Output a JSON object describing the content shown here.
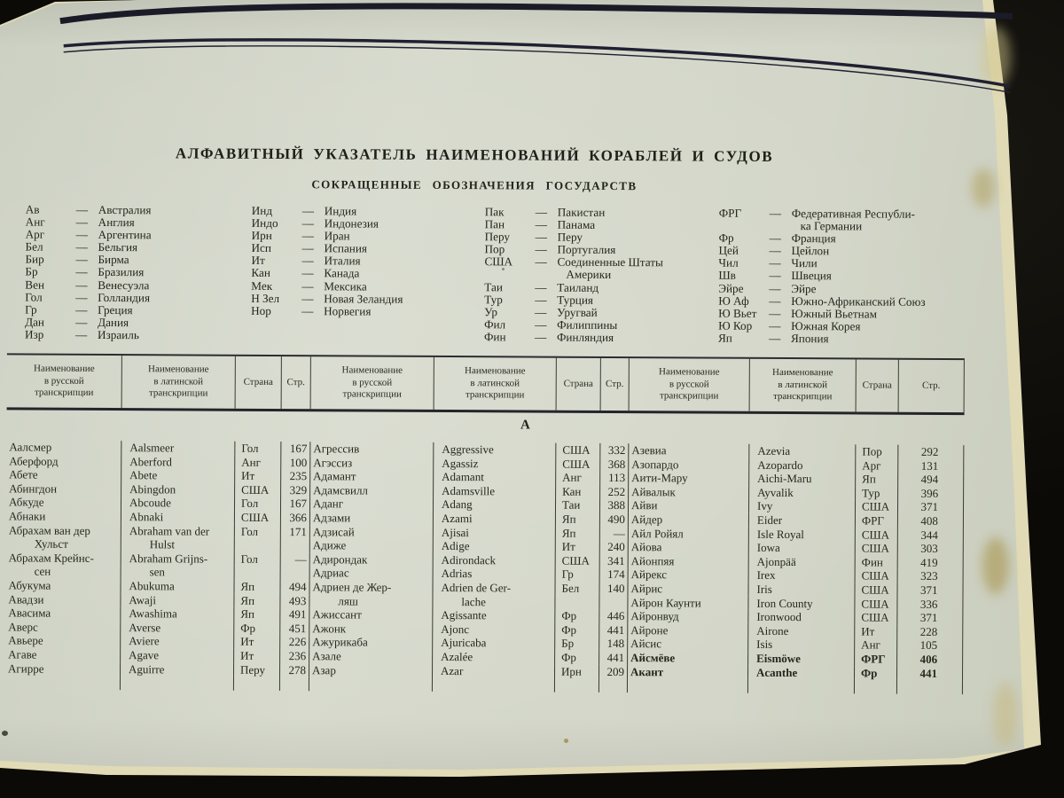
{
  "document": {
    "title": "АЛФАВИТНЫЙ УКАЗАТЕЛЬ НАИМЕНОВАНИЙ КОРАБЛЕЙ И СУДОВ",
    "subtitle": "СОКРАЩЕННЫЕ ОБОЗНАЧЕНИЯ ГОСУДАРСТВ",
    "section_letter": "А"
  },
  "colors": {
    "page_bg": "#d3d6c8",
    "ink": "#28271f",
    "rule_ink": "#202032",
    "photo_black": "#0b0a07",
    "page_edge_cream": "#e0dab6"
  },
  "abbreviations": {
    "columns": [
      {
        "items": [
          {
            "abbr": "Ав",
            "name": "Австралия"
          },
          {
            "abbr": "Анг",
            "name": "Англия"
          },
          {
            "abbr": "Арг",
            "name": "Аргентина"
          },
          {
            "abbr": "Бел",
            "name": "Бельгия"
          },
          {
            "abbr": "Бир",
            "name": "Бирма"
          },
          {
            "abbr": "Бр",
            "name": "Бразилия"
          },
          {
            "abbr": "Вен",
            "name": "Венесуэла"
          },
          {
            "abbr": "Гол",
            "name": "Голландия"
          },
          {
            "abbr": "Гр",
            "name": "Греция"
          },
          {
            "abbr": "Дан",
            "name": "Дания"
          },
          {
            "abbr": "Изр",
            "name": "Израиль"
          }
        ]
      },
      {
        "items": [
          {
            "abbr": "Инд",
            "name": "Индия"
          },
          {
            "abbr": "Индо",
            "name": "Индонезия"
          },
          {
            "abbr": "Ирн",
            "name": "Иран"
          },
          {
            "abbr": "Исп",
            "name": "Испания"
          },
          {
            "abbr": "Ит",
            "name": "Италия"
          },
          {
            "abbr": "Кан",
            "name": "Канада"
          },
          {
            "abbr": "Мек",
            "name": "Мексика"
          },
          {
            "abbr": "Н Зел",
            "name": "Новая Зеландия"
          },
          {
            "abbr": "Нор",
            "name": "Норвегия"
          }
        ]
      },
      {
        "items": [
          {
            "abbr": "Пак",
            "name": "Пакистан"
          },
          {
            "abbr": "Пан",
            "name": "Панама"
          },
          {
            "abbr": "Перу",
            "name": "Перу"
          },
          {
            "abbr": "Пор",
            "name": "Португалия"
          },
          {
            "abbr": "США",
            "name": "Соединенные Штаты",
            "name2": "Америки"
          },
          {
            "abbr": "Таи",
            "name": "Таиланд"
          },
          {
            "abbr": "Тур",
            "name": "Турция"
          },
          {
            "abbr": "Ур",
            "name": "Уругвай"
          },
          {
            "abbr": "Фил",
            "name": "Филиппины"
          },
          {
            "abbr": "Фин",
            "name": "Финляндия"
          }
        ]
      },
      {
        "items": [
          {
            "abbr": "ФРГ",
            "name": "Федеративная Республи-",
            "name2": "ка Германии"
          },
          {
            "abbr": "Фр",
            "name": "Франция"
          },
          {
            "abbr": "Цей",
            "name": "Цейлон"
          },
          {
            "abbr": "Чил",
            "name": "Чили"
          },
          {
            "abbr": "Шв",
            "name": "Швеция"
          },
          {
            "abbr": "Эйре",
            "name": "Эйре"
          },
          {
            "abbr": "Ю Аф",
            "name": "Южно-Африканский Союз"
          },
          {
            "abbr": "Ю Вьет",
            "name": "Южный Вьетнам"
          },
          {
            "abbr": "Ю Кор",
            "name": "Южная Корея"
          },
          {
            "abbr": "Яп",
            "name": "Япония"
          }
        ]
      }
    ]
  },
  "table": {
    "header": {
      "ru_lines": [
        "Наименование",
        "в русской",
        "транскрипции"
      ],
      "lat_lines": [
        "Наименование",
        "в латинской",
        "транскрипции"
      ],
      "country": "Страна",
      "page": "Стр."
    },
    "groups": [
      {
        "rows": [
          {
            "ru": "Аалсмер",
            "lat": "Aalsmeer",
            "country": "Гол",
            "page": "167"
          },
          {
            "ru": "Аберфорд",
            "lat": "Aberford",
            "country": "Анг",
            "page": "100"
          },
          {
            "ru": "Абете",
            "lat": "Abete",
            "country": "Ит",
            "page": "235"
          },
          {
            "ru": "Абингдон",
            "lat": "Abingdon",
            "country": "США",
            "page": "329"
          },
          {
            "ru": "Абкуде",
            "lat": "Abcoude",
            "country": "Гол",
            "page": "167"
          },
          {
            "ru": "Абнаки",
            "lat": "Abnaki",
            "country": "США",
            "page": "366"
          },
          {
            "ru": "Абрахам ван дер",
            "lat": "Abraham van der",
            "country": "Гол",
            "page": "171",
            "ru2": "Хульст",
            "lat2": "Hulst"
          },
          {
            "ru": "Абрахам Крейнс-",
            "lat": "Abraham Grijns-",
            "country": "Гол",
            "page": "—",
            "ru2": "сен",
            "lat2": "sen"
          },
          {
            "ru": "Абукума",
            "lat": "Abukuma",
            "country": "Яп",
            "page": "494"
          },
          {
            "ru": "Авадзи",
            "lat": "Awaji",
            "country": "Яп",
            "page": "493"
          },
          {
            "ru": "Авасима",
            "lat": "Awashima",
            "country": "Яп",
            "page": "491"
          },
          {
            "ru": "Аверс",
            "lat": "Averse",
            "country": "Фр",
            "page": "451"
          },
          {
            "ru": "Авьере",
            "lat": "Aviere",
            "country": "Ит",
            "page": "226"
          },
          {
            "ru": "Агаве",
            "lat": "Agave",
            "country": "Ит",
            "page": "236"
          },
          {
            "ru": "Агирре",
            "lat": "Aguirre",
            "country": "Перу",
            "page": "278"
          }
        ]
      },
      {
        "rows": [
          {
            "ru": "Агрессив",
            "lat": "Aggressive",
            "country": "США",
            "page": "332"
          },
          {
            "ru": "Агэссиз",
            "lat": "Agassiz",
            "country": "США",
            "page": "368"
          },
          {
            "ru": "Адамант",
            "lat": "Adamant",
            "country": "Анг",
            "page": "113"
          },
          {
            "ru": "Адамсвилл",
            "lat": "Adamsville",
            "country": "Кан",
            "page": "252"
          },
          {
            "ru": "Аданг",
            "lat": "Adang",
            "country": "Таи",
            "page": "388"
          },
          {
            "ru": "Адзами",
            "lat": "Azami",
            "country": "Яп",
            "page": "490"
          },
          {
            "ru": "Адзисай",
            "lat": "Ajisai",
            "country": "Яп",
            "page": "—"
          },
          {
            "ru": "Адиже",
            "lat": "Adige",
            "country": "Ит",
            "page": "240"
          },
          {
            "ru": "Адирондак",
            "lat": "Adirondack",
            "country": "США",
            "page": "341"
          },
          {
            "ru": "Адриас",
            "lat": "Adrias",
            "country": "Гр",
            "page": "174"
          },
          {
            "ru": "Адриен де Жер-",
            "lat": "Adrien de Ger-",
            "country": "Бел",
            "page": "140",
            "ru2": "ляш",
            "lat2": "lache"
          },
          {
            "ru": "Ажиссант",
            "lat": "Agissante",
            "country": "Фр",
            "page": "446"
          },
          {
            "ru": "Ажонк",
            "lat": "Ajonc",
            "country": "Фр",
            "page": "441"
          },
          {
            "ru": "Ажурикаба",
            "lat": "Ajuricaba",
            "country": "Бр",
            "page": "148"
          },
          {
            "ru": "Азале",
            "lat": "Azalée",
            "country": "Фр",
            "page": "441"
          },
          {
            "ru": "Азар",
            "lat": "Azar",
            "country": "Ирн",
            "page": "209"
          }
        ]
      },
      {
        "rows": [
          {
            "ru": "Азевиа",
            "lat": "Azevia",
            "country": "Пор",
            "page": "292"
          },
          {
            "ru": "Азопардо",
            "lat": "Azopardo",
            "country": "Арг",
            "page": "131"
          },
          {
            "ru": "Аити-Мару",
            "lat": "Aichi-Maru",
            "country": "Яп",
            "page": "494"
          },
          {
            "ru": "Айвалык",
            "lat": "Ayvalik",
            "country": "Тур",
            "page": "396"
          },
          {
            "ru": "Айви",
            "lat": "Ivy",
            "country": "США",
            "page": "371"
          },
          {
            "ru": "Айдер",
            "lat": "Eider",
            "country": "ФРГ",
            "page": "408"
          },
          {
            "ru": "Айл Ройял",
            "lat": "Isle Royal",
            "country": "США",
            "page": "344"
          },
          {
            "ru": "Айова",
            "lat": "Iowa",
            "country": "США",
            "page": "303"
          },
          {
            "ru": "Айонпяя",
            "lat": "Ajonpää",
            "country": "Фин",
            "page": "419"
          },
          {
            "ru": "Айрекс",
            "lat": "Irex",
            "country": "США",
            "page": "323"
          },
          {
            "ru": "Айрис",
            "lat": "Iris",
            "country": "США",
            "page": "371"
          },
          {
            "ru": "Айрон Каунти",
            "lat": "Iron County",
            "country": "США",
            "page": "336"
          },
          {
            "ru": "Айронвуд",
            "lat": "Ironwood",
            "country": "США",
            "page": "371"
          },
          {
            "ru": "Айроне",
            "lat": "Airone",
            "country": "Ит",
            "page": "228"
          },
          {
            "ru": "Айсис",
            "lat": "Isis",
            "country": "Анг",
            "page": "105"
          },
          {
            "ru": "Айсмёве",
            "lat": "Eismöwe",
            "country": "ФРГ",
            "page": "406",
            "bold": true
          },
          {
            "ru": "Акант",
            "lat": "Acanthe",
            "country": "Фр",
            "page": "441",
            "bold": true
          }
        ]
      }
    ]
  }
}
